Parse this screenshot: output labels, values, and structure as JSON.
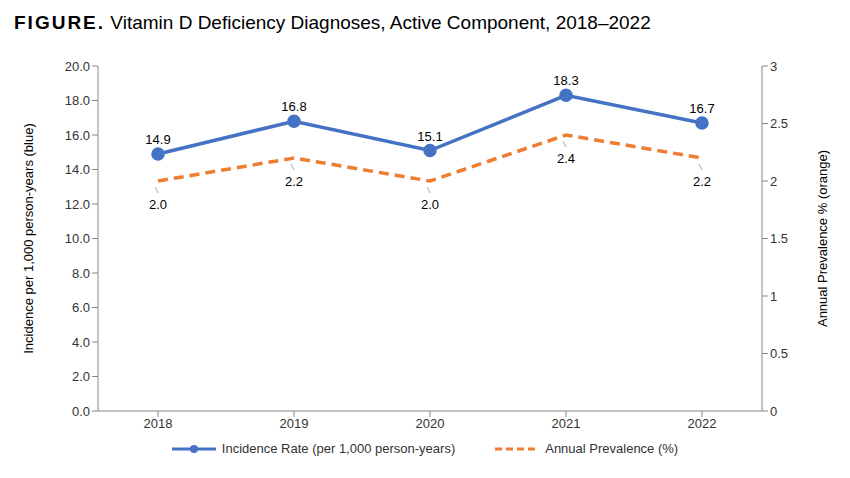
{
  "chart_data": {
    "type": "line",
    "title": "FIGURE. Vitamin D Deficiency Diagnoses, Active Component, 2018–2022",
    "categories": [
      "2018",
      "2019",
      "2020",
      "2021",
      "2022"
    ],
    "ylabel": "Incidence per 1,000 person-years  (blue)",
    "y2label": "Annual Prevalence % (orange)",
    "ylim": [
      0,
      20
    ],
    "yticks": [
      {
        "value": 0,
        "label": "0.0"
      },
      {
        "value": 2,
        "label": "2.0"
      },
      {
        "value": 4,
        "label": "4.0"
      },
      {
        "value": 6,
        "label": "6.0"
      },
      {
        "value": 8,
        "label": "8.0"
      },
      {
        "value": 10,
        "label": "10.0"
      },
      {
        "value": 12,
        "label": "12.0"
      },
      {
        "value": 14,
        "label": "14.0"
      },
      {
        "value": 16,
        "label": "16.0"
      },
      {
        "value": 18,
        "label": "18.0"
      },
      {
        "value": 20,
        "label": "20.0"
      }
    ],
    "y2lim": [
      0,
      3
    ],
    "y2ticks": [
      0,
      0.5,
      1,
      1.5,
      2,
      2.5,
      3
    ],
    "grid": false,
    "legend": "bottom",
    "data_labels": true,
    "series": [
      {
        "name": "Incidence Rate (per 1,000 person-years)",
        "color": "#4472c4",
        "values": [
          14.9,
          16.8,
          15.1,
          18.3,
          16.7
        ],
        "marker": "circle",
        "line_style": "solid"
      },
      {
        "name": "Annual Prevalence (%)",
        "color": "#ed7d31",
        "values": [
          2.0,
          2.2,
          2.0,
          2.4,
          2.2
        ],
        "value_labels": [
          "2.0",
          "2.2",
          "2.0",
          "2.4",
          "2.2"
        ],
        "axis": "y2",
        "marker": "none",
        "line_style": "dashed"
      }
    ]
  }
}
